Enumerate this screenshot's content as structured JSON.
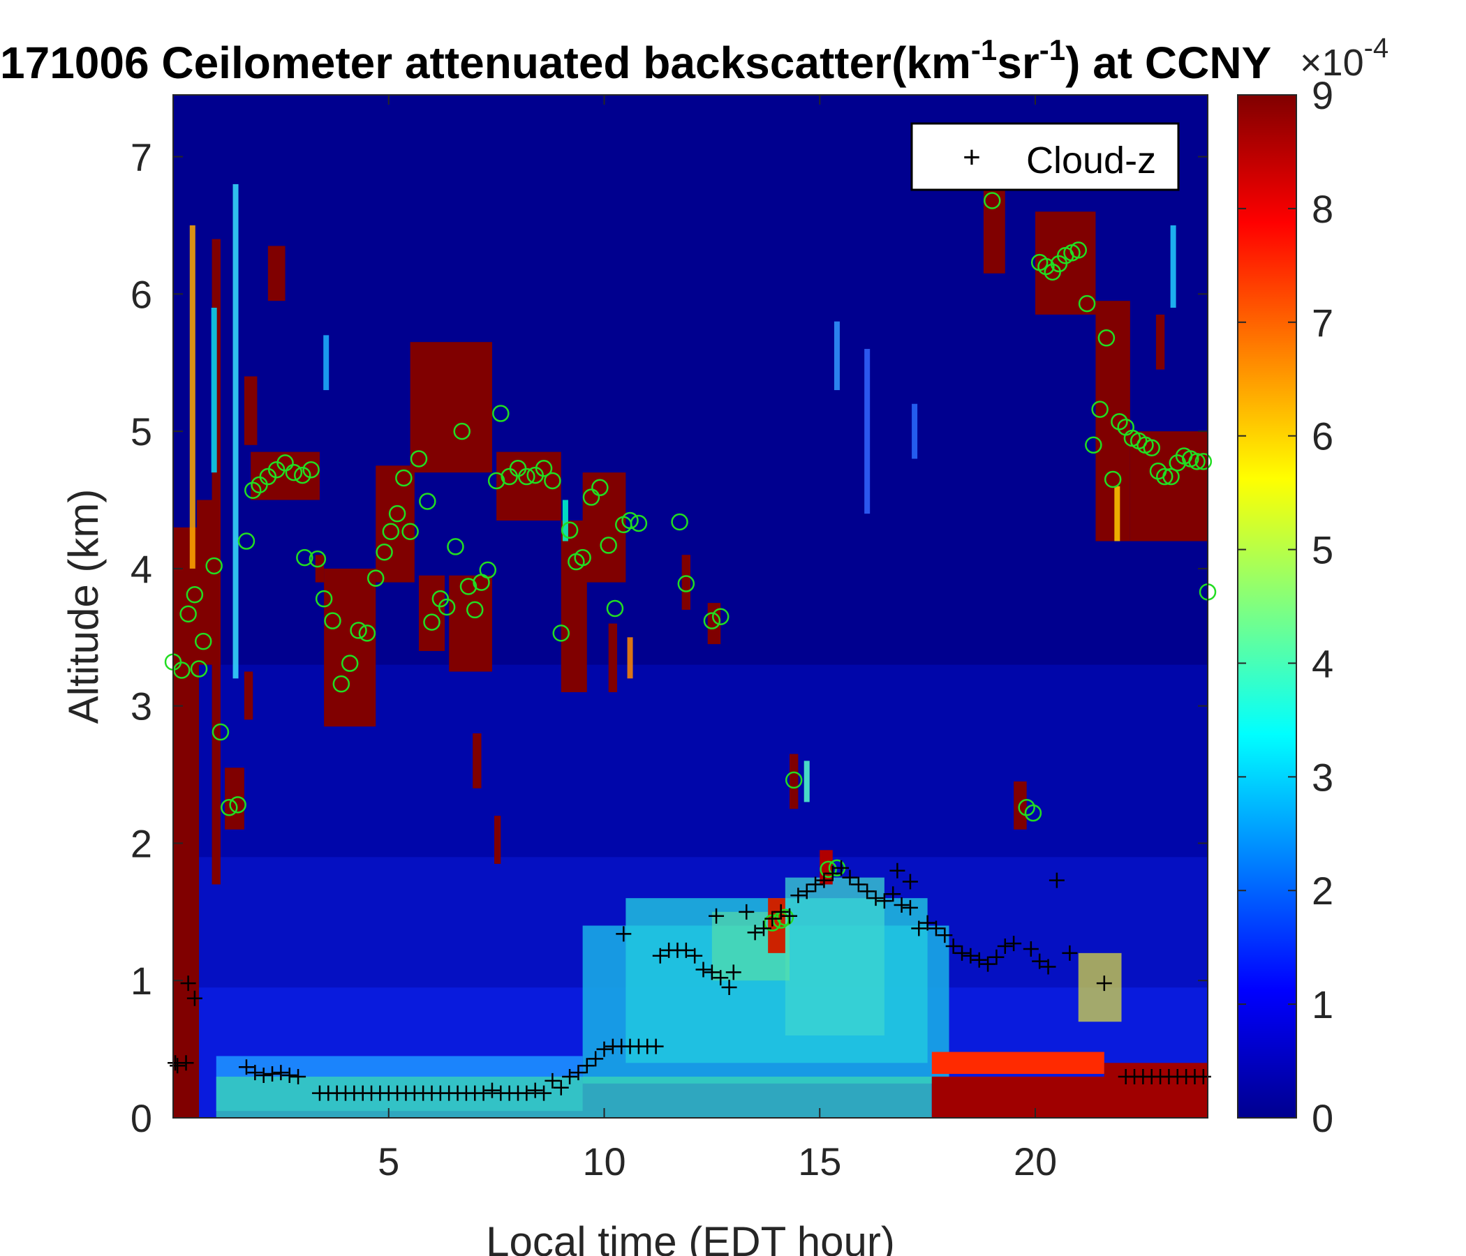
{
  "chart_data": {
    "type": "heatmap",
    "title": "171006 Ceilometer attenuated backscatter(km",
    "title_sup1": "-1",
    "title_mid": "sr",
    "title_sup2": "-1",
    "title_end": ") at CCNY",
    "xlabel": "Local time (EDT hour)",
    "ylabel": "Altitude (km)",
    "xlim": [
      0,
      24
    ],
    "ylim": [
      0,
      7.45
    ],
    "xticks": [
      5,
      10,
      15,
      20
    ],
    "yticks": [
      0,
      1,
      2,
      3,
      4,
      5,
      6,
      7
    ],
    "colorbar": {
      "range": [
        0,
        9
      ],
      "ticks": [
        0,
        1,
        2,
        3,
        4,
        5,
        6,
        7,
        8,
        9
      ],
      "exponent_base": "×10",
      "exponent": "-4",
      "colormap": "jet"
    },
    "legend": {
      "position": "top-right",
      "entries": [
        {
          "symbol": "+",
          "label": "Cloud-z"
        }
      ]
    },
    "colors": {
      "background": "#00008f",
      "marker_green": "#22dd22",
      "marker_black": "#000000"
    },
    "cloud_z": [
      [
        0.05,
        0.4
      ],
      [
        0.1,
        0.38
      ],
      [
        0.3,
        0.4
      ],
      [
        0.35,
        0.98
      ],
      [
        0.5,
        0.87
      ],
      [
        1.7,
        0.37
      ],
      [
        1.9,
        0.33
      ],
      [
        2.1,
        0.31
      ],
      [
        2.3,
        0.32
      ],
      [
        2.5,
        0.33
      ],
      [
        2.7,
        0.31
      ],
      [
        2.9,
        0.3
      ],
      [
        3.4,
        0.18
      ],
      [
        3.6,
        0.18
      ],
      [
        3.8,
        0.18
      ],
      [
        4.0,
        0.18
      ],
      [
        4.2,
        0.18
      ],
      [
        4.4,
        0.18
      ],
      [
        4.6,
        0.18
      ],
      [
        4.8,
        0.18
      ],
      [
        5.0,
        0.18
      ],
      [
        5.2,
        0.18
      ],
      [
        5.4,
        0.18
      ],
      [
        5.6,
        0.18
      ],
      [
        5.8,
        0.18
      ],
      [
        6.0,
        0.18
      ],
      [
        6.2,
        0.18
      ],
      [
        6.4,
        0.18
      ],
      [
        6.6,
        0.18
      ],
      [
        6.8,
        0.18
      ],
      [
        7.0,
        0.18
      ],
      [
        7.2,
        0.18
      ],
      [
        7.4,
        0.2
      ],
      [
        7.6,
        0.18
      ],
      [
        7.8,
        0.18
      ],
      [
        8.0,
        0.18
      ],
      [
        8.2,
        0.18
      ],
      [
        8.4,
        0.2
      ],
      [
        8.6,
        0.18
      ],
      [
        8.8,
        0.27
      ],
      [
        9.0,
        0.22
      ],
      [
        9.2,
        0.3
      ],
      [
        9.4,
        0.33
      ],
      [
        9.6,
        0.38
      ],
      [
        9.8,
        0.43
      ],
      [
        10.0,
        0.5
      ],
      [
        10.2,
        0.52
      ],
      [
        10.4,
        0.52
      ],
      [
        10.6,
        0.52
      ],
      [
        10.8,
        0.52
      ],
      [
        11.0,
        0.52
      ],
      [
        11.2,
        0.52
      ],
      [
        10.45,
        1.34
      ],
      [
        11.3,
        1.18
      ],
      [
        11.5,
        1.22
      ],
      [
        11.7,
        1.22
      ],
      [
        11.9,
        1.22
      ],
      [
        12.1,
        1.18
      ],
      [
        12.3,
        1.08
      ],
      [
        12.5,
        1.06
      ],
      [
        12.7,
        1.02
      ],
      [
        12.9,
        0.95
      ],
      [
        13.0,
        1.06
      ],
      [
        13.3,
        1.5
      ],
      [
        12.6,
        1.47
      ],
      [
        13.5,
        1.35
      ],
      [
        13.7,
        1.38
      ],
      [
        13.9,
        1.45
      ],
      [
        14.1,
        1.5
      ],
      [
        14.3,
        1.47
      ],
      [
        14.5,
        1.62
      ],
      [
        14.7,
        1.65
      ],
      [
        14.9,
        1.7
      ],
      [
        15.1,
        1.73
      ],
      [
        15.3,
        1.78
      ],
      [
        15.5,
        1.82
      ],
      [
        15.7,
        1.75
      ],
      [
        15.9,
        1.7
      ],
      [
        16.1,
        1.65
      ],
      [
        16.3,
        1.6
      ],
      [
        16.5,
        1.58
      ],
      [
        16.7,
        1.63
      ],
      [
        16.9,
        1.55
      ],
      [
        17.1,
        1.53
      ],
      [
        16.8,
        1.8
      ],
      [
        17.1,
        1.72
      ],
      [
        17.3,
        1.38
      ],
      [
        17.5,
        1.42
      ],
      [
        17.7,
        1.38
      ],
      [
        17.9,
        1.33
      ],
      [
        18.1,
        1.25
      ],
      [
        18.3,
        1.2
      ],
      [
        18.5,
        1.18
      ],
      [
        18.7,
        1.15
      ],
      [
        18.9,
        1.12
      ],
      [
        19.1,
        1.17
      ],
      [
        19.3,
        1.25
      ],
      [
        19.5,
        1.27
      ],
      [
        19.9,
        1.23
      ],
      [
        20.1,
        1.14
      ],
      [
        20.3,
        1.1
      ],
      [
        20.5,
        1.73
      ],
      [
        20.8,
        1.2
      ],
      [
        21.6,
        0.98
      ],
      [
        22.1,
        0.3
      ],
      [
        22.3,
        0.3
      ],
      [
        22.5,
        0.3
      ],
      [
        22.7,
        0.3
      ],
      [
        22.9,
        0.3
      ],
      [
        23.1,
        0.3
      ],
      [
        23.3,
        0.3
      ],
      [
        23.5,
        0.3
      ],
      [
        23.7,
        0.3
      ],
      [
        23.9,
        0.3
      ]
    ],
    "cloud_top_markers": [
      [
        0.0,
        3.32
      ],
      [
        0.2,
        3.26
      ],
      [
        0.35,
        3.67
      ],
      [
        0.5,
        3.81
      ],
      [
        0.7,
        3.47
      ],
      [
        0.6,
        3.27
      ],
      [
        0.95,
        4.02
      ],
      [
        1.1,
        2.81
      ],
      [
        1.3,
        2.26
      ],
      [
        1.5,
        2.28
      ],
      [
        1.7,
        4.2
      ],
      [
        1.85,
        4.57
      ],
      [
        2.0,
        4.61
      ],
      [
        2.2,
        4.67
      ],
      [
        2.4,
        4.72
      ],
      [
        2.6,
        4.77
      ],
      [
        2.8,
        4.7
      ],
      [
        3.0,
        4.68
      ],
      [
        3.2,
        4.72
      ],
      [
        3.05,
        4.08
      ],
      [
        3.35,
        4.07
      ],
      [
        3.5,
        3.78
      ],
      [
        3.7,
        3.62
      ],
      [
        3.9,
        3.16
      ],
      [
        4.1,
        3.31
      ],
      [
        4.3,
        3.55
      ],
      [
        4.5,
        3.53
      ],
      [
        4.7,
        3.93
      ],
      [
        4.9,
        4.12
      ],
      [
        5.05,
        4.27
      ],
      [
        5.2,
        4.4
      ],
      [
        5.35,
        4.66
      ],
      [
        5.5,
        4.27
      ],
      [
        5.7,
        4.8
      ],
      [
        5.9,
        4.49
      ],
      [
        6.0,
        3.61
      ],
      [
        6.2,
        3.78
      ],
      [
        6.35,
        3.72
      ],
      [
        6.55,
        4.16
      ],
      [
        6.7,
        5.0
      ],
      [
        6.85,
        3.87
      ],
      [
        7.0,
        3.7
      ],
      [
        7.15,
        3.9
      ],
      [
        7.3,
        3.99
      ],
      [
        7.5,
        4.64
      ],
      [
        7.6,
        5.13
      ],
      [
        7.8,
        4.67
      ],
      [
        8.0,
        4.73
      ],
      [
        8.2,
        4.67
      ],
      [
        8.4,
        4.68
      ],
      [
        8.6,
        4.73
      ],
      [
        8.8,
        4.64
      ],
      [
        9.0,
        3.53
      ],
      [
        9.2,
        4.28
      ],
      [
        9.35,
        4.05
      ],
      [
        9.5,
        4.08
      ],
      [
        9.7,
        4.52
      ],
      [
        9.9,
        4.59
      ],
      [
        10.1,
        4.17
      ],
      [
        10.25,
        3.71
      ],
      [
        10.45,
        4.32
      ],
      [
        10.6,
        4.35
      ],
      [
        10.8,
        4.33
      ],
      [
        11.75,
        4.34
      ],
      [
        11.9,
        3.89
      ],
      [
        12.5,
        3.62
      ],
      [
        12.7,
        3.65
      ],
      [
        14.4,
        2.46
      ],
      [
        13.9,
        1.42
      ],
      [
        14.1,
        1.44
      ],
      [
        14.2,
        1.46
      ],
      [
        15.2,
        1.81
      ],
      [
        15.4,
        1.82
      ],
      [
        19.0,
        6.68
      ],
      [
        19.8,
        2.26
      ],
      [
        19.95,
        2.22
      ],
      [
        20.1,
        6.23
      ],
      [
        20.25,
        6.2
      ],
      [
        20.4,
        6.16
      ],
      [
        20.55,
        6.22
      ],
      [
        20.7,
        6.28
      ],
      [
        20.85,
        6.3
      ],
      [
        21.0,
        6.32
      ],
      [
        21.2,
        5.93
      ],
      [
        21.35,
        4.9
      ],
      [
        21.5,
        5.16
      ],
      [
        21.65,
        5.68
      ],
      [
        21.8,
        4.65
      ],
      [
        21.95,
        5.07
      ],
      [
        22.1,
        5.03
      ],
      [
        22.25,
        4.95
      ],
      [
        22.4,
        4.93
      ],
      [
        22.55,
        4.9
      ],
      [
        22.7,
        4.88
      ],
      [
        22.85,
        4.71
      ],
      [
        23.0,
        4.67
      ],
      [
        23.15,
        4.67
      ],
      [
        23.3,
        4.77
      ],
      [
        23.45,
        4.82
      ],
      [
        23.6,
        4.8
      ],
      [
        23.75,
        4.78
      ],
      [
        23.9,
        4.78
      ],
      [
        24.0,
        3.83
      ]
    ]
  }
}
